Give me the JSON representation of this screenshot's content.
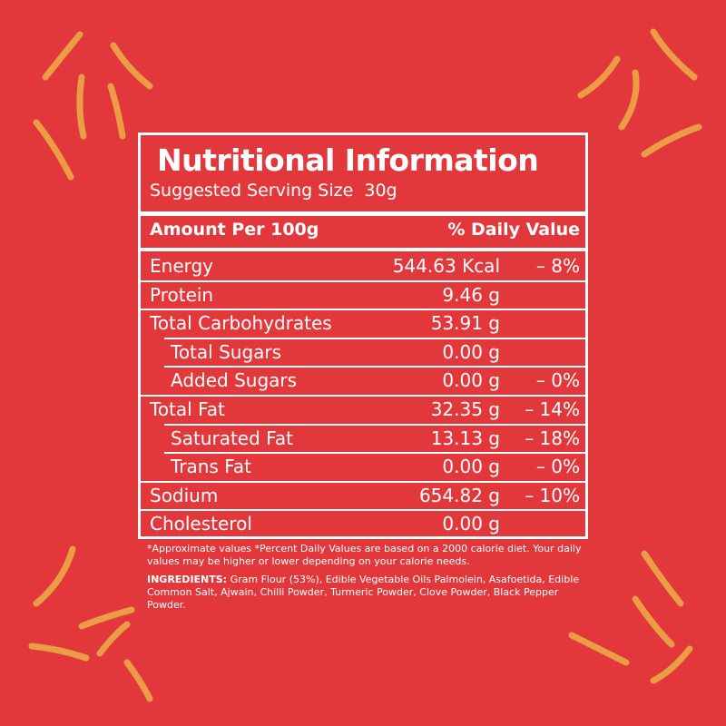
{
  "title": "Nutritional Information",
  "serving": {
    "label": "Suggested Serving Size",
    "value": "30g"
  },
  "header": {
    "amount": "Amount Per 100g",
    "daily": "% Daily Value"
  },
  "rows": [
    {
      "name": "Energy",
      "amount": "544.63 Kcal",
      "daily": "– 8%"
    },
    {
      "name": "Protein",
      "amount": "9.46 g"
    },
    {
      "name": "Total Carbohydrates",
      "amount": "53.91 g",
      "subrows": [
        {
          "name": "Total Sugars",
          "amount": "0.00 g"
        },
        {
          "name": "Added Sugars",
          "amount": "0.00 g",
          "daily": "– 0%"
        }
      ]
    },
    {
      "name": "Total Fat",
      "amount": "32.35 g",
      "daily": "– 14%",
      "subrows": [
        {
          "name": "Saturated Fat",
          "amount": "13.13 g",
          "daily": "– 18%"
        },
        {
          "name": "Trans Fat",
          "amount": "0.00 g",
          "daily": "– 0%"
        }
      ]
    },
    {
      "name": "Sodium",
      "amount": "654.82 g",
      "daily": "– 10%"
    },
    {
      "name": "Cholesterol",
      "amount": "0.00 g"
    }
  ],
  "footnote": "*Approximate values  *Percent Daily Values are based on a 2000 calorie diet. Your daily values may be higher or lower depending on your calorie needs.",
  "ingredients": {
    "label": "INGREDIENTS:",
    "text": "Gram Flour (53%), Edible Vegetable Oils Palmolein, Asafoetida, Edible Common Salt, Ajwain, Chilli Powder, Turmeric Powder, Clove Powder, Black Pepper Powder."
  }
}
